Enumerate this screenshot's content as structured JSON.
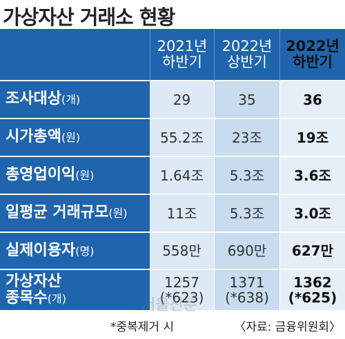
{
  "title": "가상자산 거래소 현황",
  "table": {
    "header": [
      "2021년\n하반기",
      "2022년\n상반기",
      "2022년\n하반기"
    ],
    "rows": [
      {
        "name": "조사대상",
        "unit": "(개)",
        "values": [
          "29",
          "35",
          "36"
        ]
      },
      {
        "name": "시가총액",
        "unit": "(원)",
        "values": [
          "55.2조",
          "23조",
          "19조"
        ]
      },
      {
        "name": "총영업이익",
        "unit": "(원)",
        "values": [
          "1.64조",
          "5.3조",
          "3.6조"
        ]
      },
      {
        "name": "일평균 거래규모",
        "unit": "(원)",
        "values": [
          "11조",
          "5.3조",
          "3.0조"
        ]
      },
      {
        "name": "실제이용자",
        "unit": "(명)",
        "values": [
          "558만",
          "690만",
          "627만"
        ]
      },
      {
        "name": "가상자산\n종목수",
        "unit": "(개)",
        "values": [
          "1257\n(*623)",
          "1371\n(*638)",
          "1362\n(*625)"
        ]
      }
    ]
  },
  "watermark": "서울신문",
  "footnote": "*중복제거 시",
  "source": "〈자료: 금융위원회〉"
}
